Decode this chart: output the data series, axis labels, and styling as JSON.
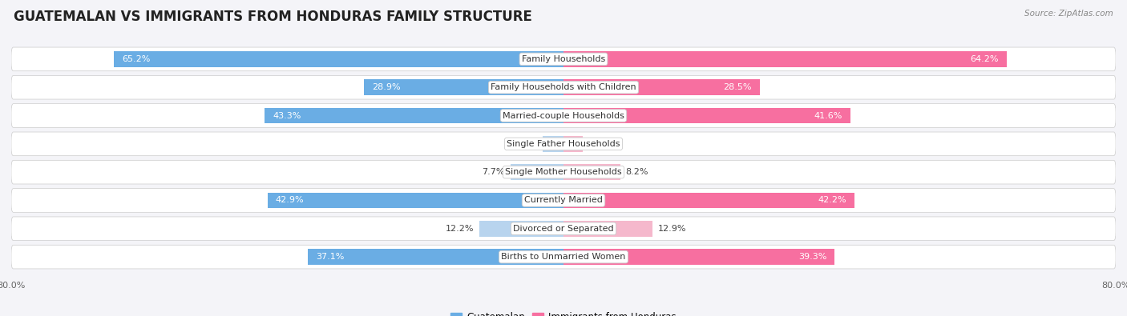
{
  "title": "GUATEMALAN VS IMMIGRANTS FROM HONDURAS FAMILY STRUCTURE",
  "source": "Source: ZipAtlas.com",
  "categories": [
    "Family Households",
    "Family Households with Children",
    "Married-couple Households",
    "Single Father Households",
    "Single Mother Households",
    "Currently Married",
    "Divorced or Separated",
    "Births to Unmarried Women"
  ],
  "guatemalan": [
    65.2,
    28.9,
    43.3,
    3.0,
    7.7,
    42.9,
    12.2,
    37.1
  ],
  "honduras": [
    64.2,
    28.5,
    41.6,
    2.8,
    8.2,
    42.2,
    12.9,
    39.3
  ],
  "max_val": 80.0,
  "color_guatemalan": "#6aade4",
  "color_honduras": "#f76fa0",
  "color_guatemalan_light": "#b8d4ee",
  "color_honduras_light": "#f5b8cc",
  "bg_color": "#f4f4f8",
  "row_bg_color": "#e8e8ef",
  "title_fontsize": 12,
  "label_fontsize": 8,
  "value_fontsize": 8,
  "tick_fontsize": 8,
  "legend_fontsize": 8.5,
  "source_fontsize": 7.5
}
